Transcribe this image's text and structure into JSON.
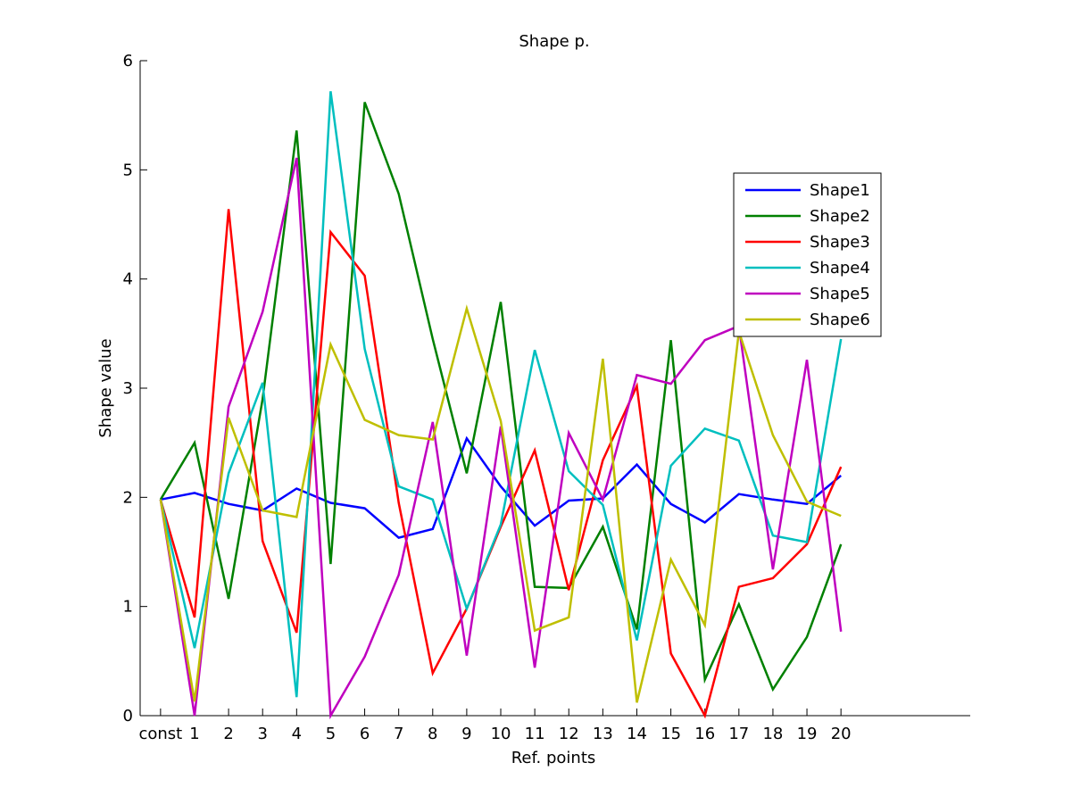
{
  "chart_data": {
    "type": "line",
    "title": "Shape p.",
    "xlabel": "Ref. points",
    "ylabel": "Shape value",
    "categories": [
      "const",
      "1",
      "2",
      "3",
      "4",
      "5",
      "6",
      "7",
      "8",
      "9",
      "10",
      "11",
      "12",
      "13",
      "14",
      "15",
      "16",
      "17",
      "18",
      "19",
      "20"
    ],
    "xlim": [
      -0.6,
      23.8
    ],
    "ylim": [
      0,
      6
    ],
    "yticks": [
      0,
      1,
      2,
      3,
      4,
      5,
      6
    ],
    "grid": false,
    "legend_position": "top-right",
    "series": [
      {
        "name": "Shape1",
        "color": "#0000ff",
        "values": [
          1.98,
          2.04,
          1.94,
          1.88,
          2.08,
          1.95,
          1.9,
          1.63,
          1.71,
          2.54,
          2.1,
          1.74,
          1.97,
          1.99,
          2.3,
          1.94,
          1.77,
          2.03,
          1.98,
          1.94,
          2.2
        ]
      },
      {
        "name": "Shape2",
        "color": "#008000",
        "values": [
          1.98,
          2.5,
          1.07,
          2.9,
          5.36,
          1.39,
          5.62,
          4.78,
          3.45,
          2.22,
          3.79,
          1.18,
          1.17,
          1.73,
          0.79,
          3.44,
          0.33,
          1.02,
          0.24,
          0.72,
          1.57
        ]
      },
      {
        "name": "Shape3",
        "color": "#ff0000",
        "values": [
          1.98,
          0.9,
          4.64,
          1.6,
          0.76,
          4.43,
          4.03,
          1.95,
          0.39,
          0.98,
          1.73,
          2.43,
          1.15,
          2.34,
          3.02,
          0.57,
          0.0,
          1.18,
          1.26,
          1.57,
          2.28
        ]
      },
      {
        "name": "Shape4",
        "color": "#00bfbf",
        "values": [
          1.98,
          0.62,
          2.22,
          3.05,
          0.17,
          5.72,
          3.36,
          2.1,
          1.98,
          0.98,
          1.75,
          3.35,
          2.24,
          1.93,
          0.69,
          2.29,
          2.63,
          2.52,
          1.65,
          1.59,
          3.45
        ]
      },
      {
        "name": "Shape5",
        "color": "#bf00bf",
        "values": [
          1.98,
          0.0,
          2.83,
          3.7,
          5.11,
          0.0,
          0.54,
          1.29,
          2.69,
          0.55,
          2.65,
          0.44,
          2.59,
          1.98,
          3.12,
          3.04,
          3.44,
          3.57,
          1.34,
          3.26,
          0.77
        ]
      },
      {
        "name": "Shape6",
        "color": "#bfbf00",
        "values": [
          1.98,
          0.13,
          2.73,
          1.88,
          1.82,
          3.4,
          2.71,
          2.57,
          2.53,
          3.73,
          2.7,
          0.78,
          0.9,
          3.27,
          0.12,
          1.43,
          0.83,
          3.52,
          2.57,
          1.96,
          1.83
        ]
      }
    ]
  }
}
